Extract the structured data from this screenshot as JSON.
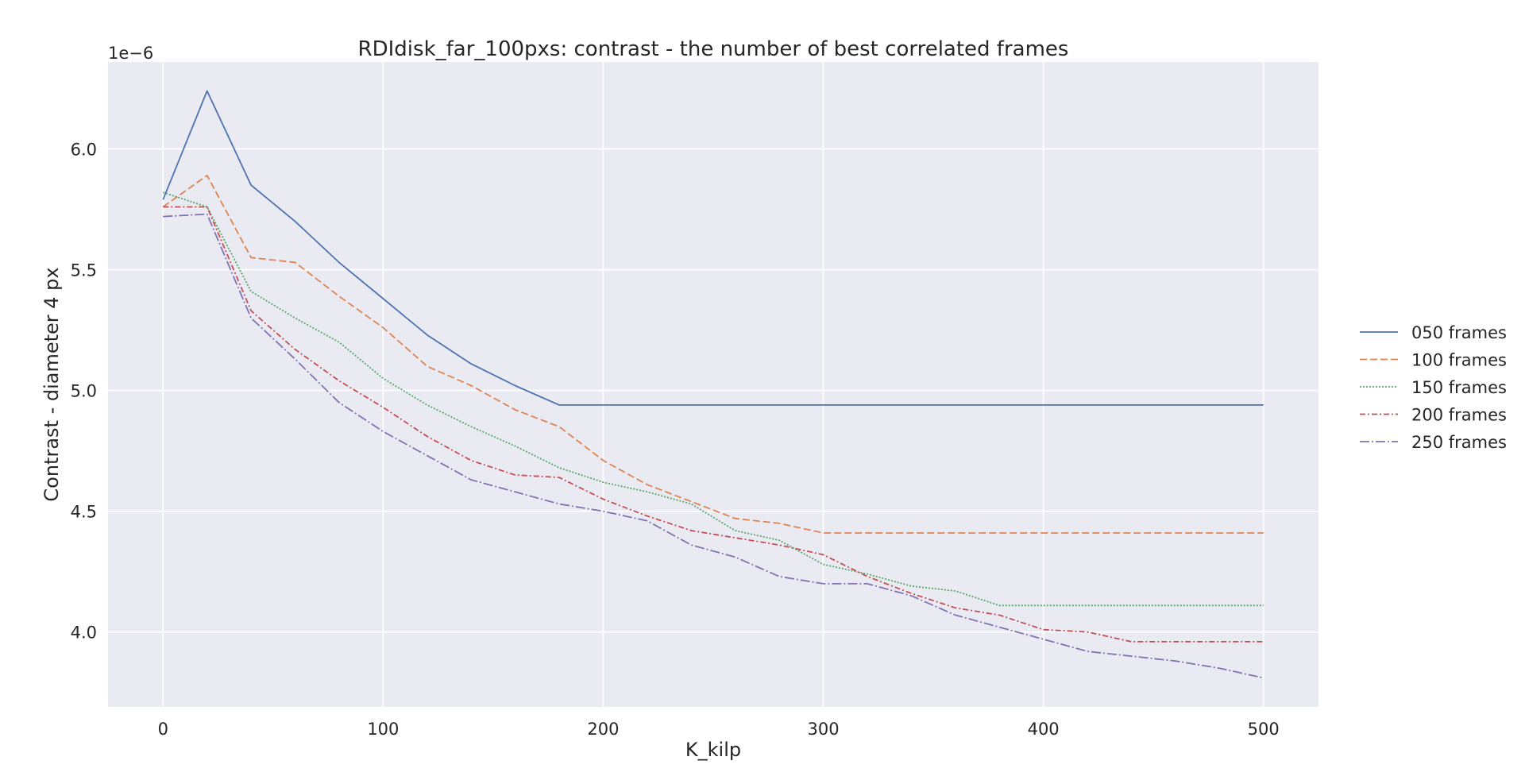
{
  "chart_data": {
    "type": "line",
    "title": "RDIdisk_far_100pxs: contrast - the number of best correlated frames",
    "xlabel": "K_kilp",
    "ylabel": "Contrast - diameter 4 px",
    "y_offset_label": "1e−6",
    "xlim": [
      -25,
      525
    ],
    "ylim": [
      3.69,
      6.36
    ],
    "xticks": [
      0,
      100,
      200,
      300,
      400,
      500
    ],
    "xtick_labels": [
      "0",
      "100",
      "200",
      "300",
      "400",
      "500"
    ],
    "yticks": [
      4.0,
      4.5,
      5.0,
      5.5,
      6.0
    ],
    "ytick_labels": [
      "4.0",
      "4.5",
      "5.0",
      "5.5",
      "6.0"
    ],
    "grid": true,
    "legend_position": "right",
    "x": [
      0,
      20,
      40,
      60,
      80,
      100,
      120,
      140,
      160,
      180,
      200,
      220,
      240,
      260,
      280,
      300,
      320,
      340,
      360,
      380,
      400,
      420,
      440,
      460,
      480,
      500
    ],
    "series": [
      {
        "name": "050 frames",
        "color": "#4c72b0",
        "dash": "",
        "values": [
          5.79,
          6.24,
          5.85,
          5.7,
          5.53,
          5.38,
          5.23,
          5.11,
          5.02,
          4.94,
          4.94,
          4.94,
          4.94,
          4.94,
          4.94,
          4.94,
          4.94,
          4.94,
          4.94,
          4.94,
          4.94,
          4.94,
          4.94,
          4.94,
          4.94,
          4.94
        ]
      },
      {
        "name": "100 frames",
        "color": "#dd8452",
        "dash": "9,4",
        "values": [
          5.76,
          5.89,
          5.55,
          5.53,
          5.39,
          5.26,
          5.1,
          5.02,
          4.92,
          4.85,
          4.71,
          4.61,
          4.54,
          4.47,
          4.45,
          4.41,
          4.41,
          4.41,
          4.41,
          4.41,
          4.41,
          4.41,
          4.41,
          4.41,
          4.41,
          4.41
        ]
      },
      {
        "name": "150 frames",
        "color": "#55a868",
        "dash": "2,2",
        "values": [
          5.82,
          5.76,
          5.41,
          5.3,
          5.2,
          5.05,
          4.94,
          4.85,
          4.77,
          4.68,
          4.62,
          4.58,
          4.53,
          4.42,
          4.38,
          4.28,
          4.24,
          4.19,
          4.17,
          4.11,
          4.11,
          4.11,
          4.11,
          4.11,
          4.11,
          4.11
        ]
      },
      {
        "name": "200 frames",
        "color": "#c44e52",
        "dash": "7,3,2,3",
        "values": [
          5.76,
          5.76,
          5.33,
          5.17,
          5.04,
          4.93,
          4.81,
          4.71,
          4.65,
          4.64,
          4.55,
          4.48,
          4.42,
          4.39,
          4.36,
          4.32,
          4.23,
          4.16,
          4.1,
          4.07,
          4.01,
          4.0,
          3.96,
          3.96,
          3.96,
          3.96
        ]
      },
      {
        "name": "250 frames",
        "color": "#8172b3",
        "dash": "12,3,2,3",
        "values": [
          5.72,
          5.73,
          5.3,
          5.13,
          4.95,
          4.83,
          4.73,
          4.63,
          4.58,
          4.53,
          4.5,
          4.46,
          4.36,
          4.31,
          4.23,
          4.2,
          4.2,
          4.15,
          4.07,
          4.02,
          3.97,
          3.92,
          3.9,
          3.88,
          3.85,
          3.81
        ]
      }
    ]
  }
}
